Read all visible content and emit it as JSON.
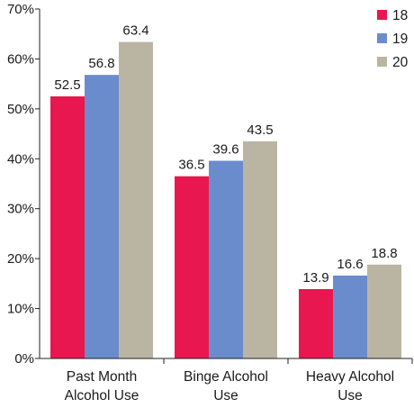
{
  "chart_data": {
    "type": "bar",
    "title": "",
    "xlabel": "",
    "ylabel": "",
    "ylim": [
      0,
      70
    ],
    "yticks": [
      0,
      10,
      20,
      30,
      40,
      50,
      60,
      70
    ],
    "ytick_labels": [
      "0%",
      "10%",
      "20%",
      "30%",
      "40%",
      "50%",
      "60%",
      "70%"
    ],
    "grid": false,
    "legend_position": "top-right",
    "categories": [
      [
        "Past Month",
        "Alcohol Use"
      ],
      [
        "Binge Alcohol",
        "Use"
      ],
      [
        "Heavy Alcohol",
        "Use"
      ]
    ],
    "series": [
      {
        "name": "18",
        "color": "#e8174f",
        "values": [
          52.5,
          36.5,
          13.9
        ]
      },
      {
        "name": "19",
        "color": "#6b8ccc",
        "values": [
          56.8,
          39.6,
          16.6
        ]
      },
      {
        "name": "20",
        "color": "#bab5a3",
        "values": [
          63.4,
          43.5,
          18.8
        ]
      }
    ]
  }
}
